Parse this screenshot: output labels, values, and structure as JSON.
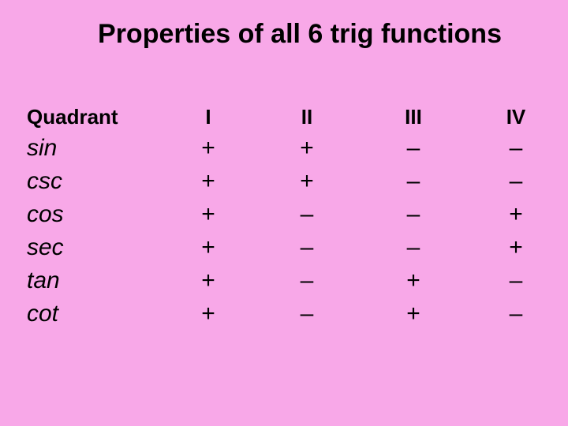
{
  "slide": {
    "background_color": "#f8a8e8",
    "text_color": "#000000",
    "title_fontsize": 34,
    "header_fontsize": 26,
    "cell_fontsize": 30,
    "font_family": "Arial, Helvetica, sans-serif"
  },
  "title": "Properties of all 6 trig functions",
  "row_label_header": "Quadrant",
  "columns": [
    "I",
    "II",
    "III",
    "IV"
  ],
  "functions": [
    "sin",
    "csc",
    "cos",
    "sec",
    "tan",
    "cot"
  ],
  "signs": {
    "sin": [
      "+",
      "+",
      "–",
      "–"
    ],
    "csc": [
      "+",
      "+",
      "–",
      "–"
    ],
    "cos": [
      "+",
      "–",
      "–",
      "+"
    ],
    "sec": [
      "+",
      "–",
      "–",
      "+"
    ],
    "tan": [
      "+",
      "–",
      "+",
      "–"
    ],
    "cot": [
      "+",
      "–",
      "+",
      "–"
    ]
  }
}
